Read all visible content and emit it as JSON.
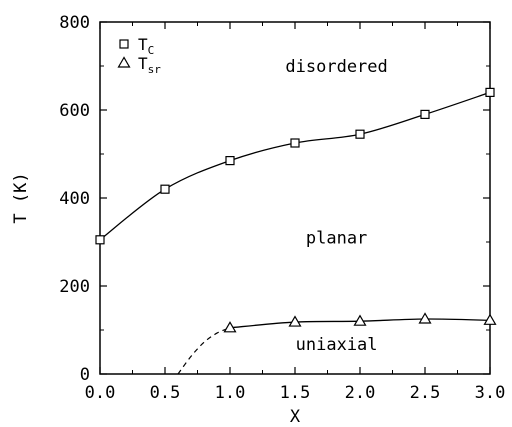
{
  "chart_data": {
    "type": "line",
    "title": "",
    "xlabel": "X",
    "ylabel": "T (K)",
    "xlim": [
      0.0,
      3.0
    ],
    "ylim": [
      0,
      800
    ],
    "xticks": [
      0.0,
      0.5,
      1.0,
      1.5,
      2.0,
      2.5,
      3.0
    ],
    "yticks": [
      0,
      200,
      400,
      600,
      800
    ],
    "xtick_labels": [
      "0.0",
      "0.5",
      "1.0",
      "1.5",
      "2.0",
      "2.5",
      "3.0"
    ],
    "ytick_labels": [
      "0",
      "200",
      "400",
      "600",
      "800"
    ],
    "legend_position": "top-left",
    "grid": false,
    "series": [
      {
        "name": "T_C",
        "legend_main": "T",
        "legend_sub": "C",
        "marker": "square",
        "x": [
          0.0,
          0.5,
          1.0,
          1.5,
          2.0,
          2.5,
          3.0
        ],
        "y": [
          305,
          420,
          485,
          525,
          545,
          590,
          640
        ]
      },
      {
        "name": "T_sr",
        "legend_main": "T",
        "legend_sub": "sr",
        "marker": "triangle",
        "x": [
          1.0,
          1.5,
          2.0,
          2.5,
          3.0
        ],
        "y": [
          105,
          118,
          120,
          125,
          122
        ]
      }
    ],
    "dashed_extrapolation": {
      "x": [
        0.6,
        0.7,
        0.8,
        0.9,
        1.0
      ],
      "y": [
        0,
        40,
        72,
        93,
        105
      ]
    },
    "annotations": [
      {
        "text": "disordered",
        "x": 1.82,
        "y": 700
      },
      {
        "text": "planar",
        "x": 1.82,
        "y": 310
      },
      {
        "text": "uniaxial",
        "x": 1.82,
        "y": 68
      }
    ]
  }
}
